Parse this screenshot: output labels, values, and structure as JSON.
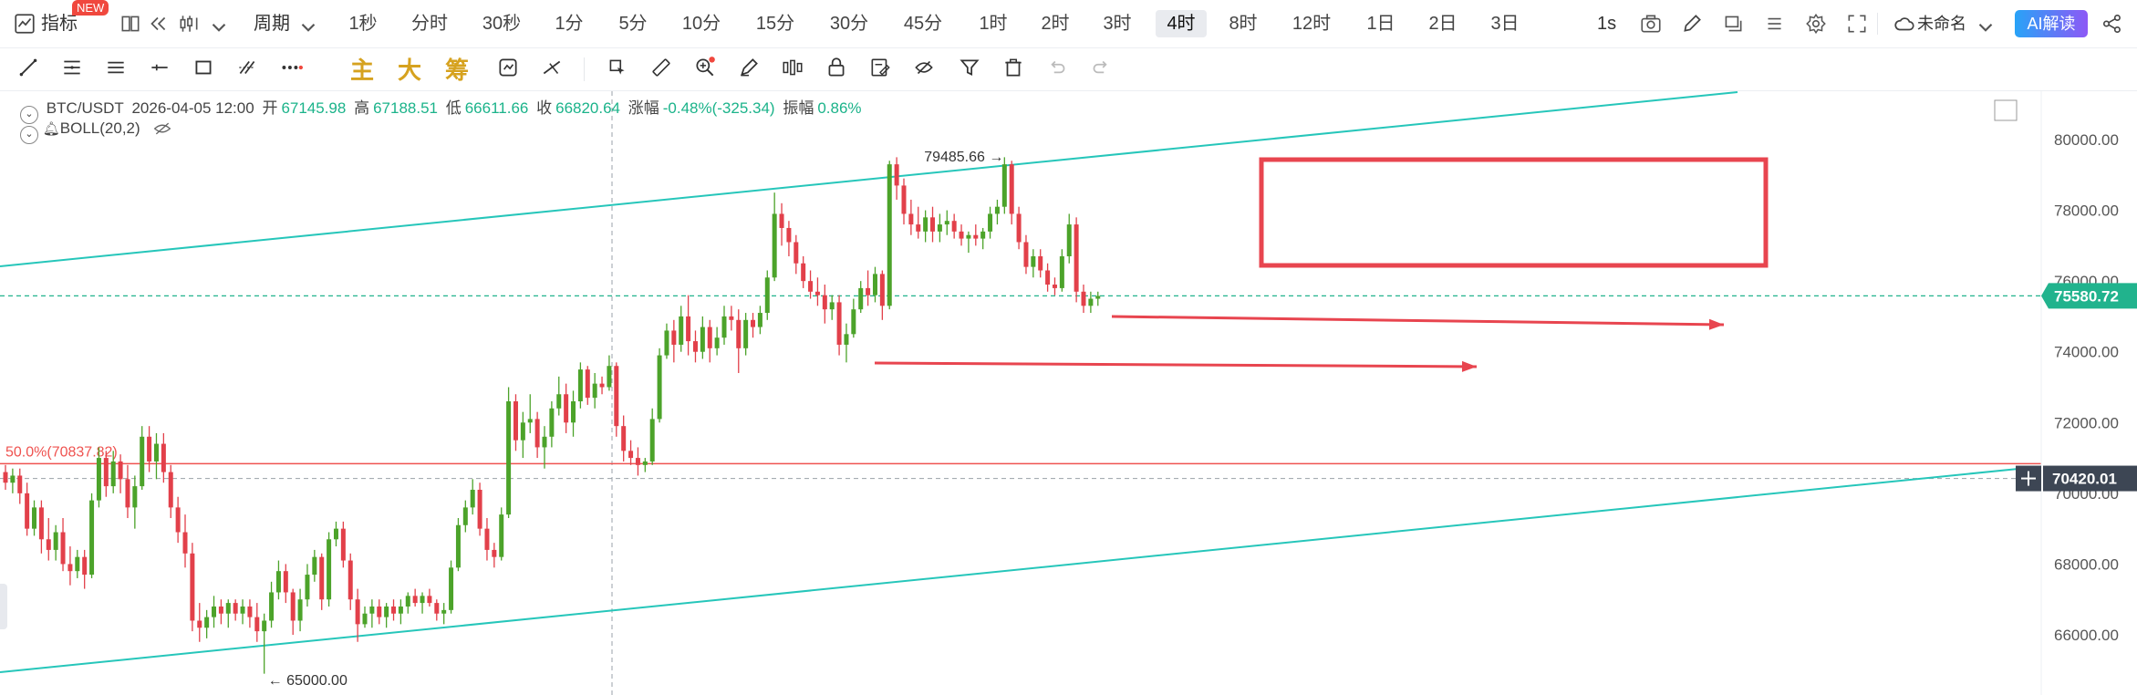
{
  "toolbar": {
    "indicator_label": "指标",
    "new_badge": "NEW",
    "period_label": "周期",
    "timeframes": [
      "1秒",
      "分时",
      "30秒",
      "1分",
      "5分",
      "10分",
      "15分",
      "30分",
      "45分",
      "1时",
      "2时",
      "3时",
      "4时",
      "8时",
      "12时",
      "1日",
      "2日",
      "3日"
    ],
    "active_timeframe": "4时",
    "seconds_label": "1s",
    "unnamed_label": "未命名",
    "ai_label": "AI解读"
  },
  "drawing_tools": {
    "indicators": [
      "主",
      "大",
      "筹"
    ],
    "icons": [
      "line-tool-icon",
      "parallel-channel-icon",
      "horizontal-lines-icon",
      "horizontal-ray-icon",
      "rectangle-icon",
      "fib-icon",
      "more-icon",
      "zoom-in-icon",
      "measure-icon",
      "ruler-icon",
      "magnet-icon",
      "eraser-icon",
      "pattern-icon",
      "lock-icon",
      "edit-icon",
      "hide-icon",
      "filter-icon",
      "trash-icon",
      "undo-icon",
      "redo-icon"
    ]
  },
  "info_bar": {
    "symbol": "BTC/USDT",
    "datetime": "2026-04-05 12:00",
    "open_label": "开",
    "open": "67145.98",
    "high_label": "高",
    "high": "67188.51",
    "low_label": "低",
    "low": "66611.66",
    "close_label": "收",
    "close": "66820.64",
    "change_label": "涨幅",
    "change": "-0.48%(-325.34)",
    "amplitude_label": "振幅",
    "amplitude": "0.86%",
    "indicator": "BOLL(20,2)"
  },
  "colors": {
    "up": "#4ca32a",
    "down": "#e2404a",
    "trendline": "#26c6ba",
    "annotation": "#e8454f",
    "price_tag": "#21b38d",
    "crosshair_tag": "#3d4654",
    "fib_line": "#ef5350"
  },
  "chart_data": {
    "type": "candlestick",
    "symbol": "BTC/USDT",
    "interval": "4h",
    "ylim": [
      64300,
      81800
    ],
    "y_ticks": [
      66000,
      68000,
      70000,
      72000,
      74000,
      76000,
      78000,
      80000
    ],
    "y_tick_labels": [
      "66000.00",
      "68000.00",
      "70000.00",
      "72000.00",
      "74000.00",
      "76000.00",
      "78000.00",
      "80000.00"
    ],
    "current_price": 75580.72,
    "current_price_label": "75580.72",
    "crosshair_price": 70420.01,
    "crosshair_price_label": "70420.01",
    "fib_level": 70837.82,
    "fib_label": "50.0%(70837.82)",
    "annotated_high": 79485.66,
    "annotated_high_label": "79485.66",
    "annotated_low": 65000.0,
    "annotated_low_label": "65000.00",
    "candles": [
      [
        70600,
        70800,
        70100,
        70300
      ],
      [
        70300,
        70700,
        70000,
        70500
      ],
      [
        70500,
        70700,
        69700,
        70000
      ],
      [
        70000,
        70300,
        68800,
        69000
      ],
      [
        69000,
        69800,
        68800,
        69600
      ],
      [
        69600,
        69800,
        68300,
        68700
      ],
      [
        68700,
        69300,
        68100,
        68400
      ],
      [
        68400,
        69100,
        68100,
        68900
      ],
      [
        68900,
        69300,
        67800,
        68000
      ],
      [
        68000,
        68500,
        67400,
        67800
      ],
      [
        67800,
        68400,
        67600,
        68200
      ],
      [
        68200,
        68400,
        67300,
        67700
      ],
      [
        67700,
        70000,
        67600,
        69800
      ],
      [
        69800,
        71300,
        69600,
        71000
      ],
      [
        71000,
        71200,
        69900,
        70200
      ],
      [
        70200,
        71200,
        70000,
        70900
      ],
      [
        70900,
        71100,
        70000,
        70400
      ],
      [
        70400,
        70800,
        69300,
        69600
      ],
      [
        69600,
        70500,
        69000,
        70200
      ],
      [
        70200,
        71900,
        70100,
        71600
      ],
      [
        71600,
        71900,
        70600,
        70900
      ],
      [
        70900,
        71700,
        70400,
        71400
      ],
      [
        71400,
        71700,
        70300,
        70600
      ],
      [
        70600,
        70800,
        69300,
        69600
      ],
      [
        69600,
        69900,
        68600,
        68900
      ],
      [
        68900,
        69400,
        67900,
        68300
      ],
      [
        68300,
        68600,
        66100,
        66400
      ],
      [
        66400,
        66900,
        65800,
        66200
      ],
      [
        66200,
        66700,
        65900,
        66500
      ],
      [
        66500,
        67100,
        66200,
        66800
      ],
      [
        66800,
        67000,
        66300,
        66600
      ],
      [
        66600,
        67000,
        66200,
        66900
      ],
      [
        66900,
        67000,
        66400,
        66600
      ],
      [
        66600,
        67000,
        66300,
        66800
      ],
      [
        66800,
        67000,
        66200,
        66500
      ],
      [
        66500,
        66900,
        65800,
        66100
      ],
      [
        66100,
        66600,
        64900,
        66400
      ],
      [
        66400,
        67500,
        66200,
        67200
      ],
      [
        67200,
        68100,
        67000,
        67800
      ],
      [
        67800,
        68000,
        66900,
        67200
      ],
      [
        67200,
        67300,
        66000,
        66400
      ],
      [
        66400,
        67300,
        66100,
        67000
      ],
      [
        67000,
        68000,
        66800,
        67700
      ],
      [
        67700,
        68400,
        67500,
        68200
      ],
      [
        68200,
        68300,
        66700,
        67000
      ],
      [
        67000,
        68900,
        66800,
        68700
      ],
      [
        68700,
        69200,
        68500,
        69000
      ],
      [
        69000,
        69200,
        67900,
        68100
      ],
      [
        68100,
        68300,
        66700,
        67000
      ],
      [
        67000,
        67300,
        65800,
        66300
      ],
      [
        66300,
        66800,
        66200,
        66600
      ],
      [
        66600,
        67000,
        66200,
        66800
      ],
      [
        66800,
        67000,
        66300,
        66500
      ],
      [
        66500,
        66900,
        66200,
        66800
      ],
      [
        66800,
        67000,
        66400,
        66600
      ],
      [
        66600,
        67000,
        66300,
        66800
      ],
      [
        66800,
        67200,
        66600,
        67100
      ],
      [
        67100,
        67300,
        66800,
        66900
      ],
      [
        66900,
        67200,
        66600,
        67100
      ],
      [
        67100,
        67300,
        66800,
        66900
      ],
      [
        66900,
        67000,
        66400,
        66600
      ],
      [
        66600,
        66900,
        66300,
        66700
      ],
      [
        66700,
        68100,
        66600,
        67900
      ],
      [
        67900,
        69300,
        67800,
        69100
      ],
      [
        69100,
        69800,
        68900,
        69600
      ],
      [
        69600,
        70400,
        69400,
        70100
      ],
      [
        70100,
        70300,
        68800,
        69000
      ],
      [
        69000,
        69300,
        68100,
        68400
      ],
      [
        68400,
        68600,
        67900,
        68200
      ],
      [
        68200,
        69600,
        68100,
        69400
      ],
      [
        69400,
        73000,
        69300,
        72600
      ],
      [
        72600,
        72800,
        71200,
        71500
      ],
      [
        71500,
        72300,
        71000,
        72000
      ],
      [
        72000,
        72800,
        71700,
        72100
      ],
      [
        72100,
        72300,
        71000,
        71300
      ],
      [
        71300,
        71900,
        70700,
        71600
      ],
      [
        71600,
        72600,
        71300,
        72400
      ],
      [
        72400,
        73300,
        72200,
        72800
      ],
      [
        72800,
        73100,
        71700,
        72000
      ],
      [
        72000,
        72900,
        71600,
        72600
      ],
      [
        72600,
        73700,
        72400,
        73500
      ],
      [
        73500,
        73600,
        72500,
        72700
      ],
      [
        72700,
        73400,
        72400,
        73100
      ],
      [
        73100,
        73300,
        72800,
        73000
      ],
      [
        73000,
        73900,
        72900,
        73600
      ],
      [
        73600,
        73700,
        71600,
        71900
      ],
      [
        71900,
        72200,
        70900,
        71200
      ],
      [
        71200,
        71500,
        70800,
        71000
      ],
      [
        71000,
        71300,
        70500,
        70800
      ],
      [
        70800,
        71000,
        70600,
        70900
      ],
      [
        70900,
        72400,
        70800,
        72100
      ],
      [
        72100,
        74100,
        72000,
        73900
      ],
      [
        73900,
        74800,
        73800,
        74600
      ],
      [
        74600,
        74900,
        73700,
        74200
      ],
      [
        74200,
        75300,
        74000,
        75000
      ],
      [
        75000,
        75600,
        73900,
        74300
      ],
      [
        74300,
        74600,
        73700,
        74000
      ],
      [
        74000,
        75000,
        73800,
        74700
      ],
      [
        74700,
        74900,
        73700,
        74100
      ],
      [
        74100,
        74700,
        73900,
        74400
      ],
      [
        74400,
        75300,
        74200,
        75000
      ],
      [
        75000,
        75300,
        74600,
        74900
      ],
      [
        74900,
        75200,
        73400,
        74100
      ],
      [
        74100,
        75100,
        73900,
        74900
      ],
      [
        74900,
        75100,
        74400,
        74700
      ],
      [
        74700,
        75300,
        74500,
        75100
      ],
      [
        75100,
        76300,
        74900,
        76100
      ],
      [
        76100,
        78500,
        76000,
        77900
      ],
      [
        77900,
        78200,
        77000,
        77500
      ],
      [
        77500,
        77700,
        76700,
        77100
      ],
      [
        77100,
        77300,
        76200,
        76500
      ],
      [
        76500,
        76700,
        75800,
        76000
      ],
      [
        76000,
        76300,
        75500,
        75700
      ],
      [
        75700,
        76100,
        75300,
        75600
      ],
      [
        75600,
        75900,
        74800,
        75200
      ],
      [
        75200,
        75600,
        74900,
        75400
      ],
      [
        75400,
        75600,
        73900,
        74200
      ],
      [
        74200,
        74800,
        73700,
        74500
      ],
      [
        74500,
        75500,
        74400,
        75200
      ],
      [
        75200,
        76000,
        75100,
        75800
      ],
      [
        75800,
        76300,
        75300,
        75600
      ],
      [
        75600,
        76400,
        75400,
        76200
      ],
      [
        76200,
        76300,
        74900,
        75300
      ],
      [
        75300,
        79400,
        75200,
        79300
      ],
      [
        79300,
        79500,
        78300,
        78700
      ],
      [
        78700,
        78900,
        77600,
        77900
      ],
      [
        77900,
        78300,
        77300,
        77600
      ],
      [
        77600,
        78100,
        77200,
        77400
      ],
      [
        77400,
        78000,
        77100,
        77800
      ],
      [
        77800,
        78100,
        77100,
        77400
      ],
      [
        77400,
        77900,
        77100,
        77600
      ],
      [
        77600,
        78000,
        77300,
        77700
      ],
      [
        77700,
        77900,
        77200,
        77400
      ],
      [
        77400,
        77600,
        77000,
        77200
      ],
      [
        77200,
        77400,
        76800,
        77300
      ],
      [
        77300,
        77600,
        77000,
        77200
      ],
      [
        77200,
        77500,
        76900,
        77400
      ],
      [
        77400,
        78100,
        77200,
        77900
      ],
      [
        77900,
        78300,
        77600,
        78100
      ],
      [
        78100,
        79500,
        77900,
        79300
      ],
      [
        79300,
        79400,
        77600,
        77900
      ],
      [
        77900,
        78100,
        76900,
        77100
      ],
      [
        77100,
        77300,
        76200,
        76400
      ],
      [
        76400,
        76900,
        76100,
        76700
      ],
      [
        76700,
        76900,
        76100,
        76300
      ],
      [
        76300,
        76500,
        75700,
        75900
      ],
      [
        75900,
        76100,
        75600,
        75800
      ],
      [
        75800,
        76900,
        75700,
        76700
      ],
      [
        76700,
        77900,
        76500,
        77600
      ],
      [
        77600,
        77800,
        75400,
        75700
      ],
      [
        75700,
        75900,
        75100,
        75300
      ],
      [
        75300,
        75700,
        75100,
        75500
      ],
      [
        75500,
        75700,
        75300,
        75580
      ]
    ]
  }
}
